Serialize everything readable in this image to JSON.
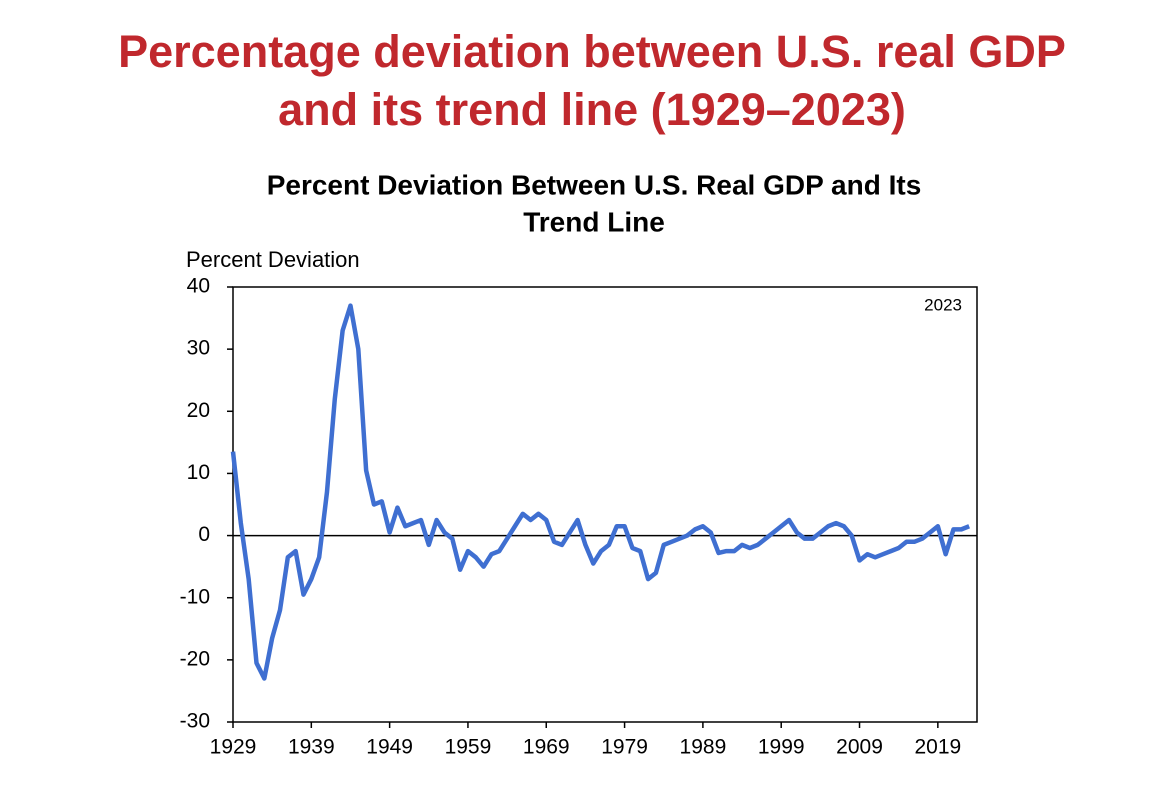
{
  "page_title": [
    "Percentage deviation between U.S. real GDP",
    "and its trend line (1929–2023)"
  ],
  "chart_data": {
    "type": "line",
    "title": [
      "Percent Deviation Between U.S. Real GDP and Its",
      "Trend Line"
    ],
    "y_label": "Percent Deviation",
    "annotation": "2023",
    "x": [
      1929,
      1930,
      1931,
      1932,
      1933,
      1934,
      1935,
      1936,
      1937,
      1938,
      1939,
      1940,
      1941,
      1942,
      1943,
      1944,
      1945,
      1946,
      1947,
      1948,
      1949,
      1950,
      1951,
      1952,
      1953,
      1954,
      1955,
      1956,
      1957,
      1958,
      1959,
      1960,
      1961,
      1962,
      1963,
      1964,
      1965,
      1966,
      1967,
      1968,
      1969,
      1970,
      1971,
      1972,
      1973,
      1974,
      1975,
      1976,
      1977,
      1978,
      1979,
      1980,
      1981,
      1982,
      1983,
      1984,
      1985,
      1986,
      1987,
      1988,
      1989,
      1990,
      1991,
      1992,
      1993,
      1994,
      1995,
      1996,
      1997,
      1998,
      1999,
      2000,
      2001,
      2002,
      2003,
      2004,
      2005,
      2006,
      2007,
      2008,
      2009,
      2010,
      2011,
      2012,
      2013,
      2014,
      2015,
      2016,
      2017,
      2018,
      2019,
      2020,
      2021,
      2022,
      2023
    ],
    "series": [
      {
        "color": "#3f6fd1",
        "values": [
          13.5,
          2,
          -7,
          -20.5,
          -23,
          -16.5,
          -12,
          -3.5,
          -2.5,
          -9.5,
          -7,
          -3.5,
          7,
          22,
          33,
          37,
          30,
          10.5,
          5,
          5.5,
          0.5,
          4.5,
          1.5,
          2,
          2.5,
          -1.5,
          2.5,
          0.5,
          -0.5,
          -5.5,
          -2.5,
          -3.5,
          -5,
          -3,
          -2.5,
          -0.5,
          1.5,
          3.5,
          2.5,
          3.5,
          2.5,
          -1,
          -1.5,
          0.5,
          2.5,
          -1.5,
          -4.5,
          -2.5,
          -1.5,
          1.5,
          1.5,
          -2,
          -2.5,
          -7,
          -6,
          -1.5,
          -1,
          -0.5,
          0,
          1,
          1.5,
          0.5,
          -2.8,
          -2.5,
          -2.5,
          -1.5,
          -2,
          -1.5,
          -0.5,
          0.5,
          1.5,
          2.5,
          0.5,
          -0.5,
          -0.5,
          0.5,
          1.5,
          2,
          1.5,
          0,
          -4,
          -3,
          -3.5,
          -3,
          -2.5,
          -2,
          -1,
          -1,
          -0.5,
          0.5,
          1.5,
          -3,
          1,
          1,
          1.5
        ]
      }
    ],
    "xlim": [
      1929,
      2024
    ],
    "xticks": [
      1929,
      1939,
      1949,
      1959,
      1969,
      1979,
      1989,
      1999,
      2009,
      2019
    ],
    "ylim": [
      -30,
      40
    ],
    "yticks": [
      -30,
      -20,
      -10,
      0,
      10,
      20,
      30,
      40
    ],
    "zero_line": true
  }
}
